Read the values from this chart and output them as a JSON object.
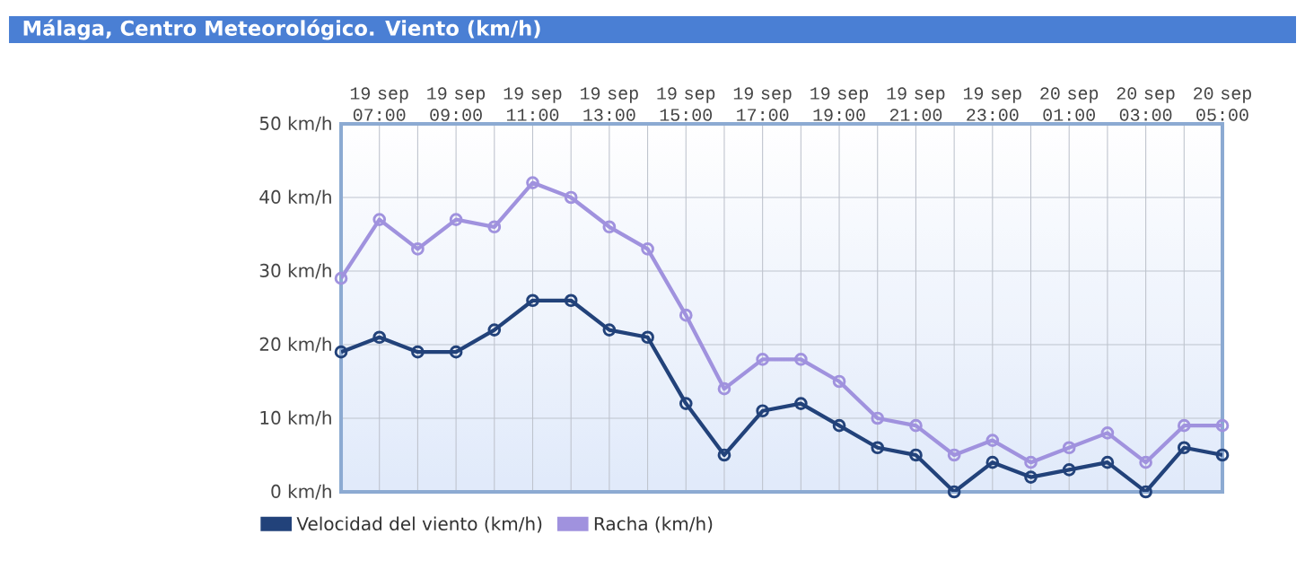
{
  "chart_data": {
    "type": "line",
    "title": "Málaga, Centro Meteorológico. Viento (km/h)",
    "categories": [
      null,
      "19 sep 07:00",
      null,
      "19 sep 09:00",
      null,
      "19 sep 11:00",
      null,
      "19 sep 13:00",
      null,
      "19 sep 15:00",
      null,
      "19 sep 17:00",
      null,
      "19 sep 19:00",
      null,
      "19 sep 21:00",
      null,
      "19 sep 23:00",
      null,
      "20 sep 01:00",
      null,
      "20 sep 03:00",
      null,
      "20 sep 05:00"
    ],
    "series": [
      {
        "name": "Velocidad del viento (km/h)",
        "color": "#22427a",
        "values": [
          19,
          21,
          19,
          19,
          22,
          26,
          26,
          22,
          21,
          12,
          5,
          11,
          12,
          9,
          6,
          5,
          0,
          4,
          2,
          3,
          4,
          0,
          6,
          5
        ]
      },
      {
        "name": "Racha (km/h)",
        "color": "#a092de",
        "values": [
          29,
          37,
          33,
          37,
          36,
          42,
          40,
          36,
          33,
          24,
          14,
          18,
          18,
          15,
          10,
          9,
          5,
          7,
          4,
          6,
          8,
          4,
          9,
          9
        ]
      }
    ],
    "ylim": [
      0,
      50
    ],
    "yticks": [
      {
        "value": 0,
        "label": "0 km/h"
      },
      {
        "value": 10,
        "label": "10 km/h"
      },
      {
        "value": 20,
        "label": "20 km/h"
      },
      {
        "value": 30,
        "label": "30 km/h"
      },
      {
        "value": 40,
        "label": "40 km/h"
      },
      {
        "value": 50,
        "label": "50 km/h"
      }
    ],
    "grid": true,
    "legend": "bottom",
    "marker": "circle",
    "line_style": "solid"
  }
}
